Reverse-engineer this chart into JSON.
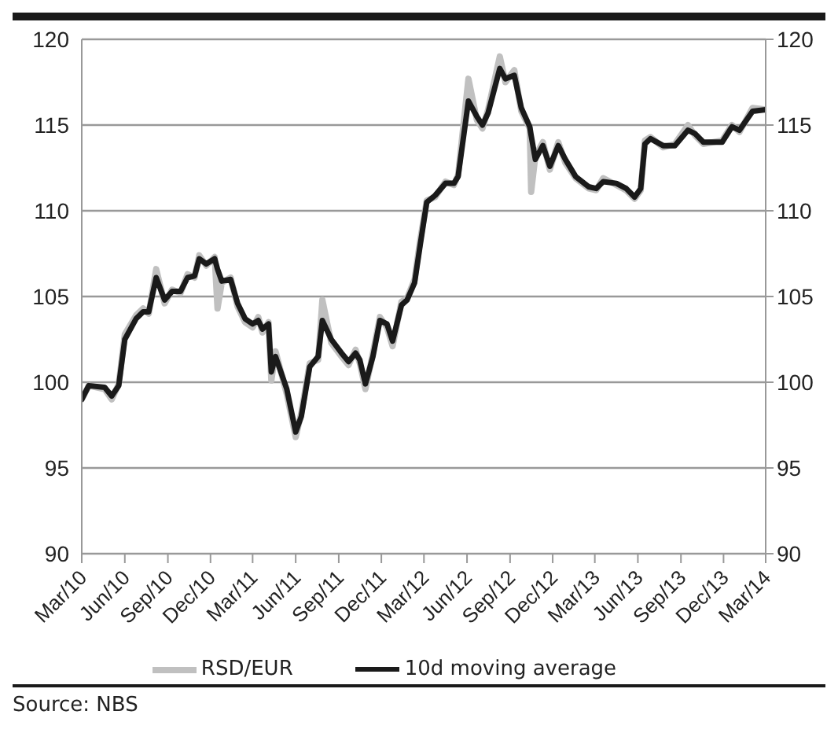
{
  "chart_data": {
    "type": "line",
    "x": [
      "2010-03-01",
      "2010-03-16",
      "2010-04-19",
      "2010-05-04",
      "2010-05-19",
      "2010-06-01",
      "2010-06-25",
      "2010-07-10",
      "2010-07-22",
      "2010-08-07",
      "2010-08-25",
      "2010-09-10",
      "2010-09-28",
      "2010-10-13",
      "2010-10-28",
      "2010-11-07",
      "2010-11-22",
      "2010-12-10",
      "2010-12-16",
      "2010-12-25",
      "2011-01-13",
      "2011-01-28",
      "2011-02-13",
      "2011-03-01",
      "2011-03-13",
      "2011-03-22",
      "2011-04-04",
      "2011-04-10",
      "2011-04-19",
      "2011-05-13",
      "2011-06-01",
      "2011-06-13",
      "2011-07-01",
      "2011-07-19",
      "2011-07-28",
      "2011-08-16",
      "2011-09-07",
      "2011-09-22",
      "2011-10-07",
      "2011-10-16",
      "2011-10-28",
      "2011-11-13",
      "2011-11-28",
      "2011-12-13",
      "2011-12-25",
      "2012-01-13",
      "2012-01-25",
      "2012-02-10",
      "2012-02-22",
      "2012-03-07",
      "2012-03-25",
      "2012-04-16",
      "2012-05-04",
      "2012-05-13",
      "2012-06-04",
      "2012-06-22",
      "2012-07-04",
      "2012-07-16",
      "2012-08-10",
      "2012-08-22",
      "2012-09-10",
      "2012-09-25",
      "2012-10-13",
      "2012-10-16",
      "2012-10-25",
      "2012-11-10",
      "2012-11-25",
      "2012-12-13",
      "2012-12-28",
      "2013-01-19",
      "2013-02-16",
      "2013-03-04",
      "2013-03-19",
      "2013-04-16",
      "2013-05-07",
      "2013-05-25",
      "2013-06-07",
      "2013-06-16",
      "2013-06-28",
      "2013-07-25",
      "2013-08-19",
      "2013-09-16",
      "2013-10-01",
      "2013-10-19",
      "2013-11-28",
      "2013-12-19",
      "2014-01-04",
      "2014-02-01",
      "2014-03-01"
    ],
    "series": [
      {
        "name": "RSD/EUR",
        "color": "#c0c0c0",
        "values": [
          99.0,
          99.8,
          99.6,
          99.0,
          99.9,
          102.8,
          103.9,
          104.3,
          104.0,
          106.6,
          104.6,
          105.4,
          105.2,
          106.3,
          106.1,
          107.4,
          106.8,
          107.3,
          104.3,
          105.8,
          106.1,
          104.4,
          103.5,
          103.2,
          103.8,
          102.9,
          103.5,
          100.1,
          101.8,
          99.3,
          96.8,
          98.2,
          101.1,
          101.3,
          104.8,
          102.3,
          101.5,
          101.0,
          101.9,
          101.1,
          99.6,
          101.7,
          103.8,
          103.2,
          102.1,
          104.7,
          104.9,
          106.0,
          108.3,
          110.6,
          110.8,
          111.7,
          111.5,
          112.1,
          117.7,
          115.3,
          114.8,
          115.9,
          119.0,
          117.5,
          118.2,
          115.8,
          114.8,
          111.1,
          113.2,
          114.0,
          112.4,
          114.0,
          112.8,
          111.9,
          111.3,
          111.2,
          111.9,
          111.5,
          111.2,
          110.7,
          111.2,
          114.1,
          114.3,
          113.7,
          113.9,
          115.0,
          114.4,
          113.9,
          114.1,
          115.0,
          114.6,
          116.0,
          115.9
        ]
      },
      {
        "name": "10d moving average",
        "color": "#1a1a1a",
        "values": [
          99.0,
          99.8,
          99.7,
          99.2,
          99.8,
          102.5,
          103.7,
          104.1,
          104.1,
          106.1,
          104.8,
          105.3,
          105.3,
          106.1,
          106.2,
          107.2,
          106.9,
          107.2,
          106.6,
          105.9,
          106.0,
          104.6,
          103.7,
          103.4,
          103.6,
          103.1,
          103.4,
          100.6,
          101.5,
          99.6,
          97.1,
          98.0,
          100.9,
          101.5,
          103.6,
          102.5,
          101.7,
          101.2,
          101.7,
          101.3,
          99.9,
          101.5,
          103.6,
          103.4,
          102.4,
          104.5,
          104.8,
          105.8,
          108.0,
          110.5,
          110.9,
          111.6,
          111.6,
          112.0,
          116.4,
          115.5,
          115.0,
          115.7,
          118.3,
          117.7,
          117.9,
          116.0,
          114.9,
          114.4,
          113.0,
          113.8,
          112.6,
          113.8,
          113.0,
          112.0,
          111.4,
          111.3,
          111.7,
          111.6,
          111.3,
          110.8,
          111.3,
          113.9,
          114.2,
          113.8,
          113.8,
          114.7,
          114.5,
          114.0,
          114.0,
          114.9,
          114.7,
          115.8,
          115.9
        ]
      }
    ],
    "xlim": [
      "2010-03-01",
      "2014-03-01"
    ],
    "xticks": [
      {
        "value": "2010-03-01",
        "label": "Mar/10"
      },
      {
        "value": "2010-06-01",
        "label": "Jun/10"
      },
      {
        "value": "2010-09-01",
        "label": "Sep/10"
      },
      {
        "value": "2010-12-01",
        "label": "Dec/10"
      },
      {
        "value": "2011-03-01",
        "label": "Mar/11"
      },
      {
        "value": "2011-06-01",
        "label": "Jun/11"
      },
      {
        "value": "2011-09-01",
        "label": "Sep/11"
      },
      {
        "value": "2011-12-01",
        "label": "Dec/11"
      },
      {
        "value": "2012-03-01",
        "label": "Mar/12"
      },
      {
        "value": "2012-06-01",
        "label": "Jun/12"
      },
      {
        "value": "2012-09-01",
        "label": "Sep/12"
      },
      {
        "value": "2012-12-01",
        "label": "Dec/12"
      },
      {
        "value": "2013-03-01",
        "label": "Mar/13"
      },
      {
        "value": "2013-06-01",
        "label": "Jun/13"
      },
      {
        "value": "2013-09-01",
        "label": "Sep/13"
      },
      {
        "value": "2013-12-01",
        "label": "Dec/13"
      },
      {
        "value": "2014-03-01",
        "label": "Mar/14"
      }
    ],
    "ylim": [
      90,
      120
    ],
    "yticks": [
      90,
      95,
      100,
      105,
      110,
      115,
      120
    ],
    "y2lim": [
      90,
      120
    ],
    "y2ticks": [
      90,
      95,
      100,
      105,
      110,
      115,
      120
    ],
    "grid": "y",
    "legend": "bottom",
    "marker": "none",
    "line_style": "solid",
    "annotations": [
      "Source: NBS"
    ]
  }
}
